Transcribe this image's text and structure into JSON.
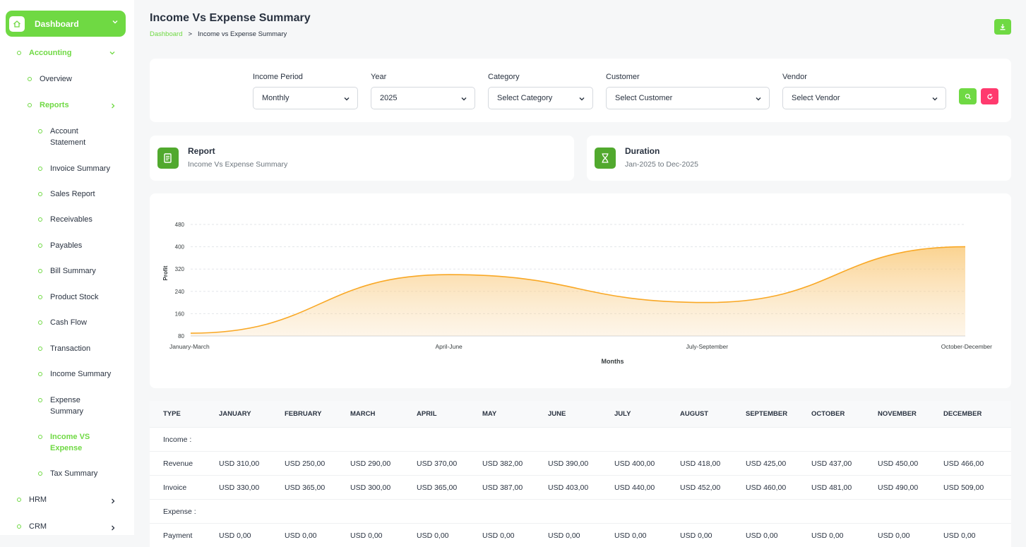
{
  "sidebar": {
    "dashboard": "Dashboard",
    "accounting": "Accounting",
    "overview": "Overview",
    "reports": "Reports",
    "report_items": [
      "Account Statement",
      "Invoice Summary",
      "Sales Report",
      "Receivables",
      "Payables",
      "Bill Summary",
      "Product Stock",
      "Cash Flow",
      "Transaction",
      "Income Summary",
      "Expense Summary",
      "Income VS Expense",
      "Tax Summary"
    ],
    "hrm": "HRM",
    "crm": "CRM"
  },
  "header": {
    "title": "Income Vs Expense Summary",
    "breadcrumb_home": "Dashboard",
    "breadcrumb_sep": ">",
    "breadcrumb_current": "Income vs Expense Summary"
  },
  "filters": {
    "income_period_label": "Income Period",
    "income_period_value": "Monthly",
    "year_label": "Year",
    "year_value": "2025",
    "category_label": "Category",
    "category_value": "Select Category",
    "customer_label": "Customer",
    "customer_value": "Select Customer",
    "vendor_label": "Vendor",
    "vendor_value": "Select Vendor"
  },
  "info": {
    "report_title": "Report",
    "report_sub": "Income Vs Expense Summary",
    "duration_title": "Duration",
    "duration_sub": "Jan-2025 to Dec-2025"
  },
  "colors": {
    "accent": "#6fd943",
    "danger": "#ff3a6e",
    "line": "#f9a825"
  },
  "chart_data": {
    "type": "area",
    "categories": [
      "January-March",
      "April-June",
      "July-September",
      "October-December"
    ],
    "series": [
      {
        "values": [
          90,
          300,
          200,
          400
        ]
      }
    ],
    "xlabel": "Months",
    "ylabel": "Profit",
    "yticks": [
      80,
      160,
      240,
      320,
      400,
      480
    ],
    "ylim": [
      80,
      480
    ],
    "grid": true
  },
  "table": {
    "headers": [
      "TYPE",
      "JANUARY",
      "FEBRUARY",
      "MARCH",
      "APRIL",
      "MAY",
      "JUNE",
      "JULY",
      "AUGUST",
      "SEPTEMBER",
      "OCTOBER",
      "NOVEMBER",
      "DECEMBER"
    ],
    "rows": [
      {
        "kind": "section",
        "label": "Income :"
      },
      {
        "kind": "data",
        "label": "Revenue",
        "values": [
          "USD 310,00",
          "USD 250,00",
          "USD 290,00",
          "USD 370,00",
          "USD 382,00",
          "USD 390,00",
          "USD 400,00",
          "USD 418,00",
          "USD 425,00",
          "USD 437,00",
          "USD 450,00",
          "USD 466,00"
        ]
      },
      {
        "kind": "data",
        "label": "Invoice",
        "values": [
          "USD 330,00",
          "USD 365,00",
          "USD 300,00",
          "USD 365,00",
          "USD 387,00",
          "USD 403,00",
          "USD 440,00",
          "USD 452,00",
          "USD 460,00",
          "USD 481,00",
          "USD 490,00",
          "USD 509,00"
        ]
      },
      {
        "kind": "section",
        "label": "Expense :"
      },
      {
        "kind": "data",
        "label": "Payment",
        "values": [
          "USD 0,00",
          "USD 0,00",
          "USD 0,00",
          "USD 0,00",
          "USD 0,00",
          "USD 0,00",
          "USD 0,00",
          "USD 0,00",
          "USD 0,00",
          "USD 0,00",
          "USD 0,00",
          "USD 0,00"
        ]
      }
    ]
  }
}
